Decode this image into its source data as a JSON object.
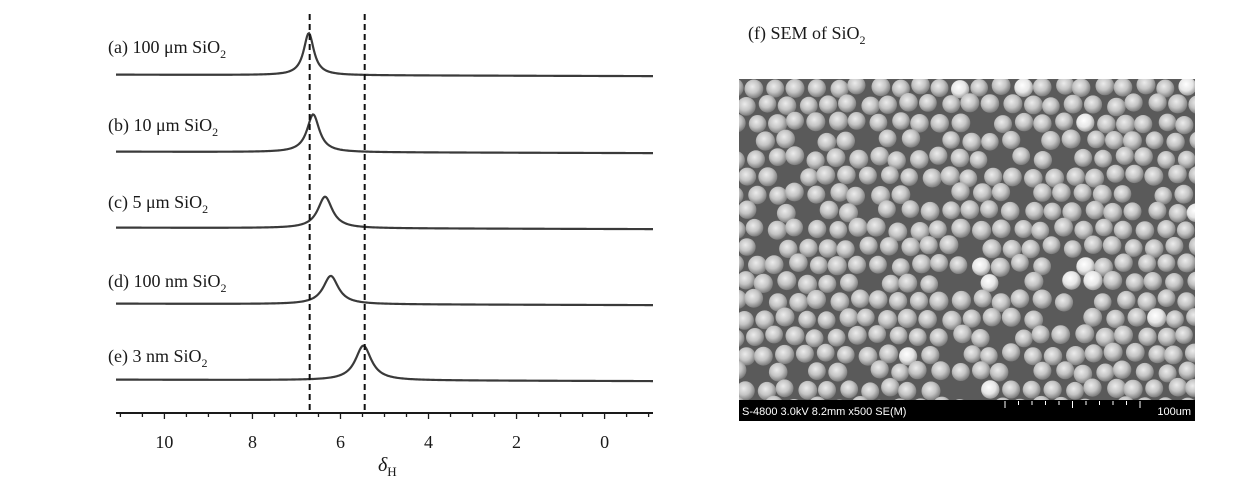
{
  "chart_data": {
    "type": "line",
    "x_axis": {
      "reversed": true,
      "xlim": [
        11.1,
        -1.1
      ],
      "ticks": [
        10,
        8,
        6,
        4,
        2,
        0
      ],
      "tick_labels": [
        "10",
        "8",
        "6",
        "4",
        "2",
        "0"
      ],
      "xlabel_symbol": "δ",
      "xlabel_subscript": "H"
    },
    "y_axis": {
      "shown": false
    },
    "reference_lines": [
      6.7,
      5.45
    ],
    "series": [
      {
        "label_main": "(a) 100 μm SiO",
        "label_sub": "2",
        "peak_x": 6.72,
        "peak_height": 0.4,
        "width": 0.14
      },
      {
        "label_main": "(b) 10 μm SiO",
        "label_sub": "2",
        "peak_x": 6.62,
        "peak_height": 0.36,
        "width": 0.17
      },
      {
        "label_main": "(c) 5 μm SiO",
        "label_sub": "2",
        "peak_x": 6.35,
        "peak_height": 0.3,
        "width": 0.2
      },
      {
        "label_main": "(d) 100 nm SiO",
        "label_sub": "2",
        "peak_x": 6.22,
        "peak_height": 0.27,
        "width": 0.21
      },
      {
        "label_main": "(e) 3 nm SiO",
        "label_sub": "2",
        "peak_x": 5.48,
        "peak_height": 0.33,
        "width": 0.22
      }
    ]
  },
  "sem_panel": {
    "title_main": "(f)  SEM of SiO",
    "title_sub": "2",
    "info_bar_left": "S-4800 3.0kV 8.2mm x500 SE(M)",
    "info_bar_right": "100um"
  }
}
